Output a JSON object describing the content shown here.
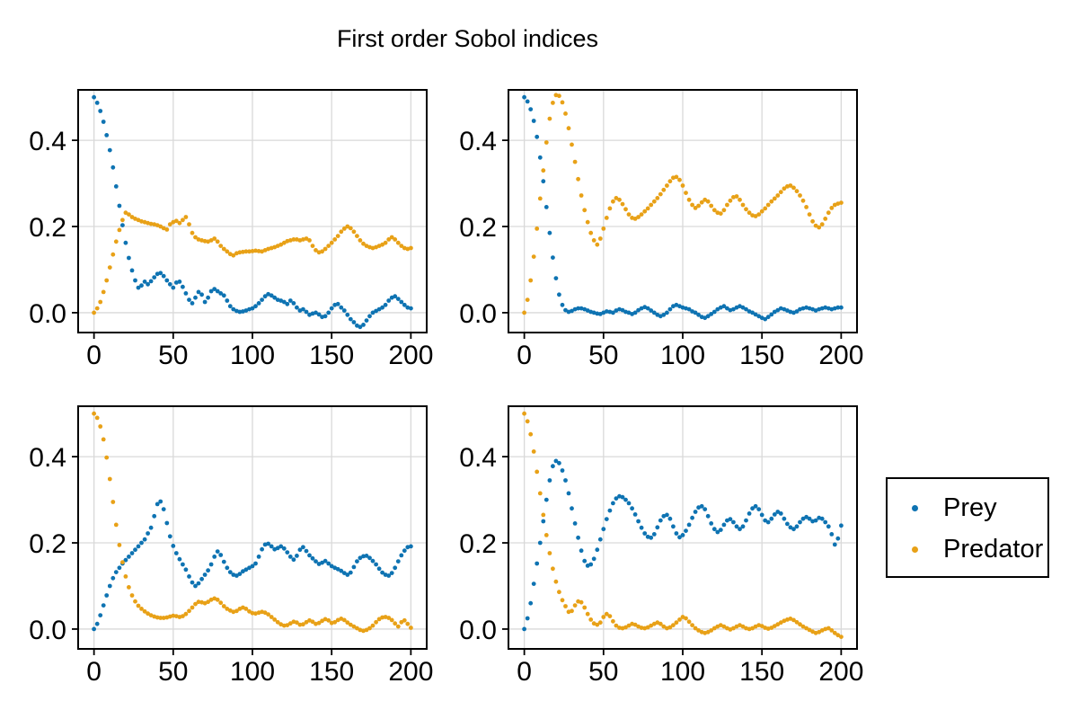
{
  "chart_data": {
    "type": "scatter",
    "title": "First order Sobol indices",
    "layout": "2x2 grid",
    "grid": true,
    "x_ticks": [
      0,
      50,
      100,
      150,
      200
    ],
    "x_tick_labels": [
      "0",
      "50",
      "100",
      "150",
      "200"
    ],
    "y_ticks": [
      0.0,
      0.2,
      0.4
    ],
    "y_tick_labels": [
      "0.0",
      "0.2",
      "0.4"
    ],
    "xlim": [
      -10,
      210
    ],
    "ylim": [
      -0.046,
      0.517
    ],
    "colors": {
      "Prey": "#0E73B2",
      "Predator": "#E8A117"
    },
    "legend": {
      "position": "right",
      "entries": [
        {
          "label": "Prey",
          "color": "#0E73B2"
        },
        {
          "label": "Predator",
          "color": "#E8A117"
        }
      ]
    },
    "x_sampling": {
      "start": 0,
      "step": 2,
      "count": 101
    },
    "subplots": [
      {
        "position": "top-left",
        "series": [
          {
            "name": "Prey",
            "y": [
              0.5,
              0.487,
              0.468,
              0.443,
              0.412,
              0.377,
              0.337,
              0.293,
              0.248,
              0.203,
              0.162,
              0.127,
              0.098,
              0.075,
              0.058,
              0.063,
              0.072,
              0.066,
              0.073,
              0.082,
              0.09,
              0.092,
              0.085,
              0.075,
              0.066,
              0.058,
              0.07,
              0.072,
              0.06,
              0.045,
              0.03,
              0.022,
              0.035,
              0.048,
              0.042,
              0.025,
              0.035,
              0.05,
              0.055,
              0.05,
              0.045,
              0.04,
              0.028,
              0.015,
              0.008,
              0.004,
              0.002,
              0.003,
              0.005,
              0.008,
              0.01,
              0.015,
              0.022,
              0.03,
              0.038,
              0.043,
              0.04,
              0.035,
              0.03,
              0.028,
              0.025,
              0.02,
              0.028,
              0.022,
              0.012,
              0.005,
              0.008,
              0.002,
              -0.005,
              -0.002,
              0.0,
              -0.004,
              -0.01,
              -0.008,
              0.0,
              0.01,
              0.018,
              0.02,
              0.012,
              0.005,
              -0.005,
              -0.015,
              -0.022,
              -0.03,
              -0.033,
              -0.028,
              -0.018,
              -0.008,
              0.0,
              0.004,
              0.008,
              0.012,
              0.018,
              0.028,
              0.035,
              0.038,
              0.032,
              0.025,
              0.018,
              0.012,
              0.01
            ]
          },
          {
            "name": "Predator",
            "y": [
              0.0,
              0.01,
              0.025,
              0.048,
              0.075,
              0.105,
              0.135,
              0.165,
              0.192,
              0.215,
              0.232,
              0.228,
              0.222,
              0.218,
              0.215,
              0.212,
              0.21,
              0.208,
              0.206,
              0.205,
              0.203,
              0.2,
              0.196,
              0.193,
              0.205,
              0.21,
              0.213,
              0.208,
              0.215,
              0.222,
              0.205,
              0.185,
              0.175,
              0.17,
              0.168,
              0.166,
              0.165,
              0.168,
              0.172,
              0.165,
              0.155,
              0.148,
              0.142,
              0.136,
              0.133,
              0.138,
              0.14,
              0.141,
              0.142,
              0.142,
              0.143,
              0.144,
              0.143,
              0.142,
              0.145,
              0.148,
              0.15,
              0.152,
              0.155,
              0.158,
              0.162,
              0.166,
              0.168,
              0.17,
              0.17,
              0.168,
              0.17,
              0.172,
              0.168,
              0.155,
              0.145,
              0.14,
              0.142,
              0.148,
              0.155,
              0.162,
              0.17,
              0.178,
              0.188,
              0.195,
              0.2,
              0.196,
              0.188,
              0.178,
              0.168,
              0.16,
              0.155,
              0.152,
              0.15,
              0.152,
              0.155,
              0.158,
              0.162,
              0.17,
              0.175,
              0.17,
              0.162,
              0.155,
              0.15,
              0.148,
              0.15
            ]
          }
        ]
      },
      {
        "position": "top-right",
        "series": [
          {
            "name": "Prey",
            "y": [
              0.5,
              0.49,
              0.472,
              0.445,
              0.408,
              0.36,
              0.305,
              0.245,
              0.185,
              0.128,
              0.08,
              0.042,
              0.018,
              0.006,
              0.002,
              0.004,
              0.008,
              0.01,
              0.01,
              0.008,
              0.005,
              0.002,
              0.0,
              -0.002,
              -0.003,
              0.0,
              0.003,
              0.002,
              0.0,
              0.005,
              0.008,
              0.006,
              0.002,
              0.0,
              -0.003,
              0.0,
              0.006,
              0.01,
              0.013,
              0.01,
              0.005,
              0.0,
              -0.005,
              -0.008,
              -0.005,
              0.0,
              0.008,
              0.015,
              0.018,
              0.015,
              0.012,
              0.01,
              0.008,
              0.003,
              0.0,
              -0.005,
              -0.01,
              -0.012,
              -0.008,
              -0.003,
              0.002,
              0.008,
              0.012,
              0.015,
              0.01,
              0.006,
              0.008,
              0.012,
              0.015,
              0.012,
              0.008,
              0.003,
              0.0,
              -0.004,
              -0.008,
              -0.012,
              -0.015,
              -0.01,
              -0.004,
              0.002,
              0.006,
              0.01,
              0.008,
              0.005,
              0.002,
              0.0,
              0.003,
              0.008,
              0.01,
              0.012,
              0.01,
              0.008,
              0.005,
              0.008,
              0.01,
              0.012,
              0.01,
              0.008,
              0.01,
              0.012,
              0.012
            ]
          },
          {
            "name": "Predator",
            "y": [
              0.0,
              0.03,
              0.075,
              0.13,
              0.195,
              0.265,
              0.33,
              0.395,
              0.45,
              0.487,
              0.505,
              0.503,
              0.488,
              0.462,
              0.428,
              0.39,
              0.35,
              0.31,
              0.272,
              0.238,
              0.21,
              0.185,
              0.168,
              0.158,
              0.172,
              0.195,
              0.22,
              0.242,
              0.258,
              0.266,
              0.262,
              0.252,
              0.24,
              0.228,
              0.22,
              0.218,
              0.222,
              0.228,
              0.235,
              0.242,
              0.25,
              0.258,
              0.266,
              0.275,
              0.285,
              0.295,
              0.305,
              0.313,
              0.315,
              0.308,
              0.295,
              0.278,
              0.262,
              0.25,
              0.243,
              0.248,
              0.256,
              0.262,
              0.258,
              0.248,
              0.238,
              0.232,
              0.23,
              0.238,
              0.25,
              0.26,
              0.268,
              0.27,
              0.262,
              0.25,
              0.24,
              0.232,
              0.226,
              0.224,
              0.228,
              0.235,
              0.242,
              0.25,
              0.258,
              0.265,
              0.272,
              0.28,
              0.288,
              0.293,
              0.295,
              0.29,
              0.282,
              0.272,
              0.26,
              0.245,
              0.228,
              0.212,
              0.202,
              0.198,
              0.205,
              0.218,
              0.232,
              0.243,
              0.25,
              0.253,
              0.255
            ]
          }
        ]
      },
      {
        "position": "bottom-left",
        "series": [
          {
            "name": "Prey",
            "y": [
              0.0,
              0.012,
              0.032,
              0.055,
              0.078,
              0.1,
              0.118,
              0.132,
              0.142,
              0.152,
              0.16,
              0.168,
              0.176,
              0.184,
              0.192,
              0.2,
              0.208,
              0.222,
              0.235,
              0.262,
              0.29,
              0.296,
              0.278,
              0.246,
              0.215,
              0.193,
              0.176,
              0.162,
              0.15,
              0.138,
              0.122,
              0.108,
              0.1,
              0.106,
              0.116,
              0.126,
              0.136,
              0.15,
              0.168,
              0.18,
              0.172,
              0.156,
              0.142,
              0.132,
              0.126,
              0.124,
              0.128,
              0.134,
              0.138,
              0.142,
              0.146,
              0.152,
              0.168,
              0.185,
              0.196,
              0.198,
              0.192,
              0.185,
              0.188,
              0.192,
              0.187,
              0.178,
              0.168,
              0.161,
              0.17,
              0.184,
              0.19,
              0.181,
              0.171,
              0.164,
              0.157,
              0.151,
              0.154,
              0.158,
              0.152,
              0.146,
              0.142,
              0.139,
              0.135,
              0.13,
              0.126,
              0.131,
              0.144,
              0.157,
              0.165,
              0.169,
              0.17,
              0.165,
              0.158,
              0.15,
              0.14,
              0.131,
              0.126,
              0.124,
              0.13,
              0.142,
              0.157,
              0.171,
              0.182,
              0.19,
              0.192
            ]
          },
          {
            "name": "Predator",
            "y": [
              0.5,
              0.49,
              0.47,
              0.44,
              0.398,
              0.348,
              0.295,
              0.242,
              0.195,
              0.155,
              0.122,
              0.097,
              0.078,
              0.064,
              0.054,
              0.047,
              0.041,
              0.036,
              0.032,
              0.029,
              0.027,
              0.026,
              0.026,
              0.027,
              0.029,
              0.031,
              0.03,
              0.028,
              0.03,
              0.035,
              0.042,
              0.05,
              0.058,
              0.063,
              0.062,
              0.06,
              0.063,
              0.068,
              0.071,
              0.068,
              0.061,
              0.053,
              0.047,
              0.043,
              0.04,
              0.042,
              0.047,
              0.05,
              0.047,
              0.041,
              0.037,
              0.036,
              0.038,
              0.04,
              0.038,
              0.034,
              0.028,
              0.022,
              0.016,
              0.011,
              0.008,
              0.009,
              0.013,
              0.017,
              0.015,
              0.01,
              0.011,
              0.016,
              0.02,
              0.017,
              0.012,
              0.014,
              0.019,
              0.023,
              0.02,
              0.014,
              0.016,
              0.021,
              0.024,
              0.021,
              0.015,
              0.01,
              0.006,
              0.002,
              -0.002,
              -0.004,
              -0.002,
              0.002,
              0.008,
              0.016,
              0.023,
              0.027,
              0.028,
              0.026,
              0.021,
              0.013,
              0.006,
              0.016,
              0.02,
              0.012,
              0.003
            ]
          }
        ]
      },
      {
        "position": "bottom-right",
        "series": [
          {
            "name": "Prey",
            "y": [
              0.0,
              0.025,
              0.06,
              0.105,
              0.152,
              0.2,
              0.25,
              0.3,
              0.345,
              0.378,
              0.39,
              0.385,
              0.368,
              0.345,
              0.315,
              0.28,
              0.245,
              0.212,
              0.182,
              0.158,
              0.147,
              0.15,
              0.163,
              0.184,
              0.208,
              0.232,
              0.255,
              0.275,
              0.292,
              0.303,
              0.308,
              0.306,
              0.3,
              0.292,
              0.28,
              0.266,
              0.25,
              0.235,
              0.222,
              0.214,
              0.212,
              0.22,
              0.236,
              0.252,
              0.262,
              0.265,
              0.256,
              0.238,
              0.222,
              0.213,
              0.218,
              0.228,
              0.242,
              0.258,
              0.272,
              0.282,
              0.285,
              0.278,
              0.262,
              0.245,
              0.232,
              0.225,
              0.23,
              0.242,
              0.252,
              0.255,
              0.248,
              0.238,
              0.232,
              0.238,
              0.252,
              0.268,
              0.28,
              0.285,
              0.278,
              0.265,
              0.252,
              0.248,
              0.256,
              0.266,
              0.272,
              0.268,
              0.256,
              0.244,
              0.236,
              0.232,
              0.238,
              0.248,
              0.256,
              0.26,
              0.256,
              0.25,
              0.252,
              0.258,
              0.256,
              0.248,
              0.238,
              0.22,
              0.196,
              0.21,
              0.24
            ]
          },
          {
            "name": "Predator",
            "y": [
              0.5,
              0.482,
              0.452,
              0.412,
              0.365,
              0.315,
              0.265,
              0.218,
              0.176,
              0.14,
              0.11,
              0.086,
              0.067,
              0.053,
              0.04,
              0.042,
              0.055,
              0.064,
              0.062,
              0.05,
              0.035,
              0.022,
              0.013,
              0.01,
              0.015,
              0.028,
              0.035,
              0.03,
              0.018,
              0.008,
              0.003,
              0.002,
              0.004,
              0.008,
              0.012,
              0.01,
              0.006,
              0.003,
              0.002,
              0.004,
              0.008,
              0.012,
              0.015,
              0.012,
              0.006,
              0.002,
              0.004,
              0.009,
              0.015,
              0.022,
              0.028,
              0.025,
              0.017,
              0.009,
              0.002,
              -0.003,
              -0.007,
              -0.009,
              -0.007,
              -0.003,
              0.002,
              0.006,
              0.009,
              0.006,
              0.002,
              -0.001,
              0.002,
              0.006,
              0.009,
              0.006,
              0.002,
              0.0,
              0.002,
              0.006,
              0.009,
              0.007,
              0.003,
              0.001,
              0.003,
              0.007,
              0.011,
              0.015,
              0.019,
              0.022,
              0.024,
              0.021,
              0.016,
              0.011,
              0.006,
              0.002,
              -0.002,
              -0.006,
              -0.009,
              -0.007,
              -0.003,
              0.0,
              0.002,
              -0.003,
              -0.009,
              -0.014,
              -0.018
            ]
          }
        ]
      }
    ]
  }
}
